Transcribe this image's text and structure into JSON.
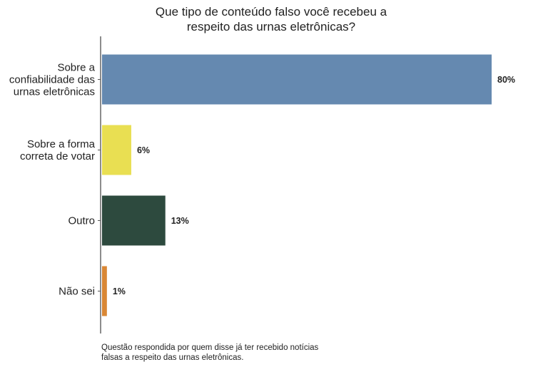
{
  "chart_data": {
    "type": "bar",
    "orientation": "horizontal",
    "title_lines": [
      "Que tipo de conteúdo falso você recebeu a",
      "respeito das urnas eletrônicas?"
    ],
    "categories": [
      [
        "Sobre a",
        "confiabilidade das",
        "urnas eletrônicas"
      ],
      [
        "Sobre a forma",
        "correta de votar"
      ],
      [
        "Outro"
      ],
      [
        "Não sei"
      ]
    ],
    "values": [
      80,
      6,
      13,
      1
    ],
    "value_labels": [
      "80%",
      "6%",
      "13%",
      "1%"
    ],
    "colors": [
      "#6589b0",
      "#e9df52",
      "#2d4a3e",
      "#d98735"
    ],
    "xlim": [
      0,
      80
    ],
    "grid": false,
    "note_lines": [
      "Questão respondida por quem disse já ter recebido notícias",
      "falsas a respeito das urnas eletrônicas."
    ]
  }
}
